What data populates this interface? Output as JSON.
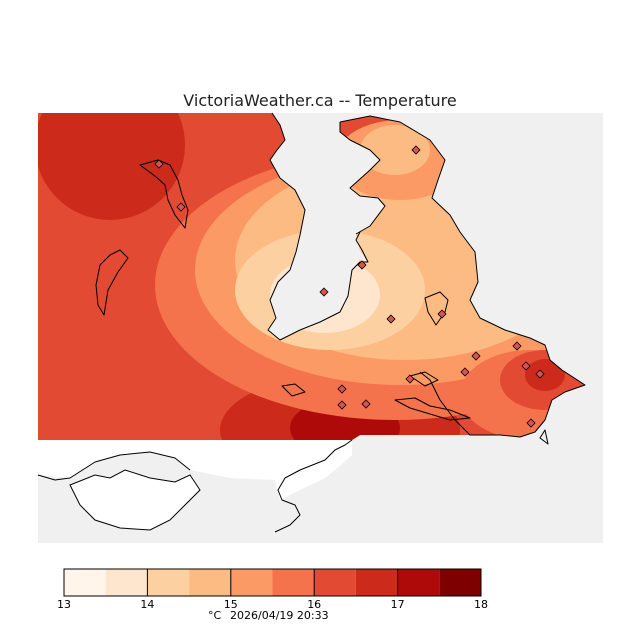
{
  "title": "VictoriaWeather.ca  --  Temperature",
  "legend": {
    "colors": [
      "#fff5eb",
      "#fee6ce",
      "#fdd0a2",
      "#fdbb84",
      "#fc9a65",
      "#f4734c",
      "#e34a33",
      "#cc2a1a",
      "#ae0a0a",
      "#7f0000"
    ],
    "ticks": [
      "13",
      "14",
      "15",
      "16",
      "17",
      "18"
    ]
  },
  "footer": {
    "unit": "°C",
    "timestamp": "2026/04/19 20:33"
  },
  "colors": {
    "no_data": "#f0f0f0",
    "land_outside": "#ffffff"
  }
}
